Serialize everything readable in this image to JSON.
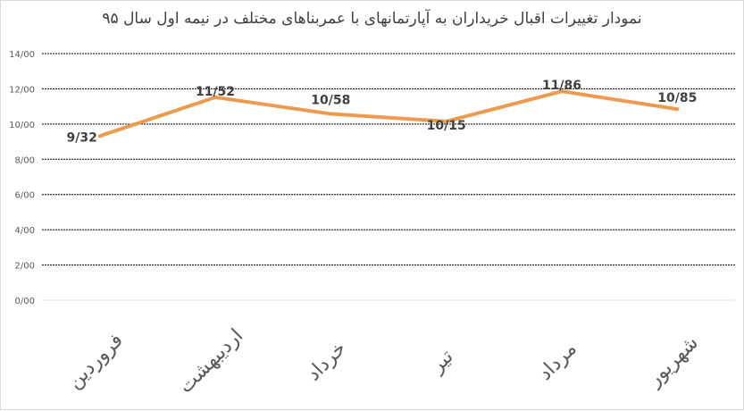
{
  "chart_data": {
    "type": "line",
    "title": "نمودار تغییرات اقبال خریداران به آپارتمانهای با عمربناهای مختلف در نیمه اول سال ۹۵",
    "categories": [
      "فروردین",
      "اردیبهشت",
      "خرداد",
      "تیر",
      "مرداد",
      "شهریور"
    ],
    "values": [
      9.32,
      11.52,
      10.58,
      10.15,
      11.86,
      10.85
    ],
    "data_labels": [
      "9/32",
      "11/52",
      "10/58",
      "10/15",
      "11/86",
      "10/85"
    ],
    "ylim": [
      0,
      14
    ],
    "yticks": [
      "0/00",
      "2/00",
      "4/00",
      "6/00",
      "8/00",
      "10/00",
      "12/00",
      "14/00"
    ],
    "xlabel": "",
    "ylabel": "",
    "grid": true,
    "grid_style": "dashed",
    "line_color": "#ED9A4F",
    "legend": "none"
  }
}
